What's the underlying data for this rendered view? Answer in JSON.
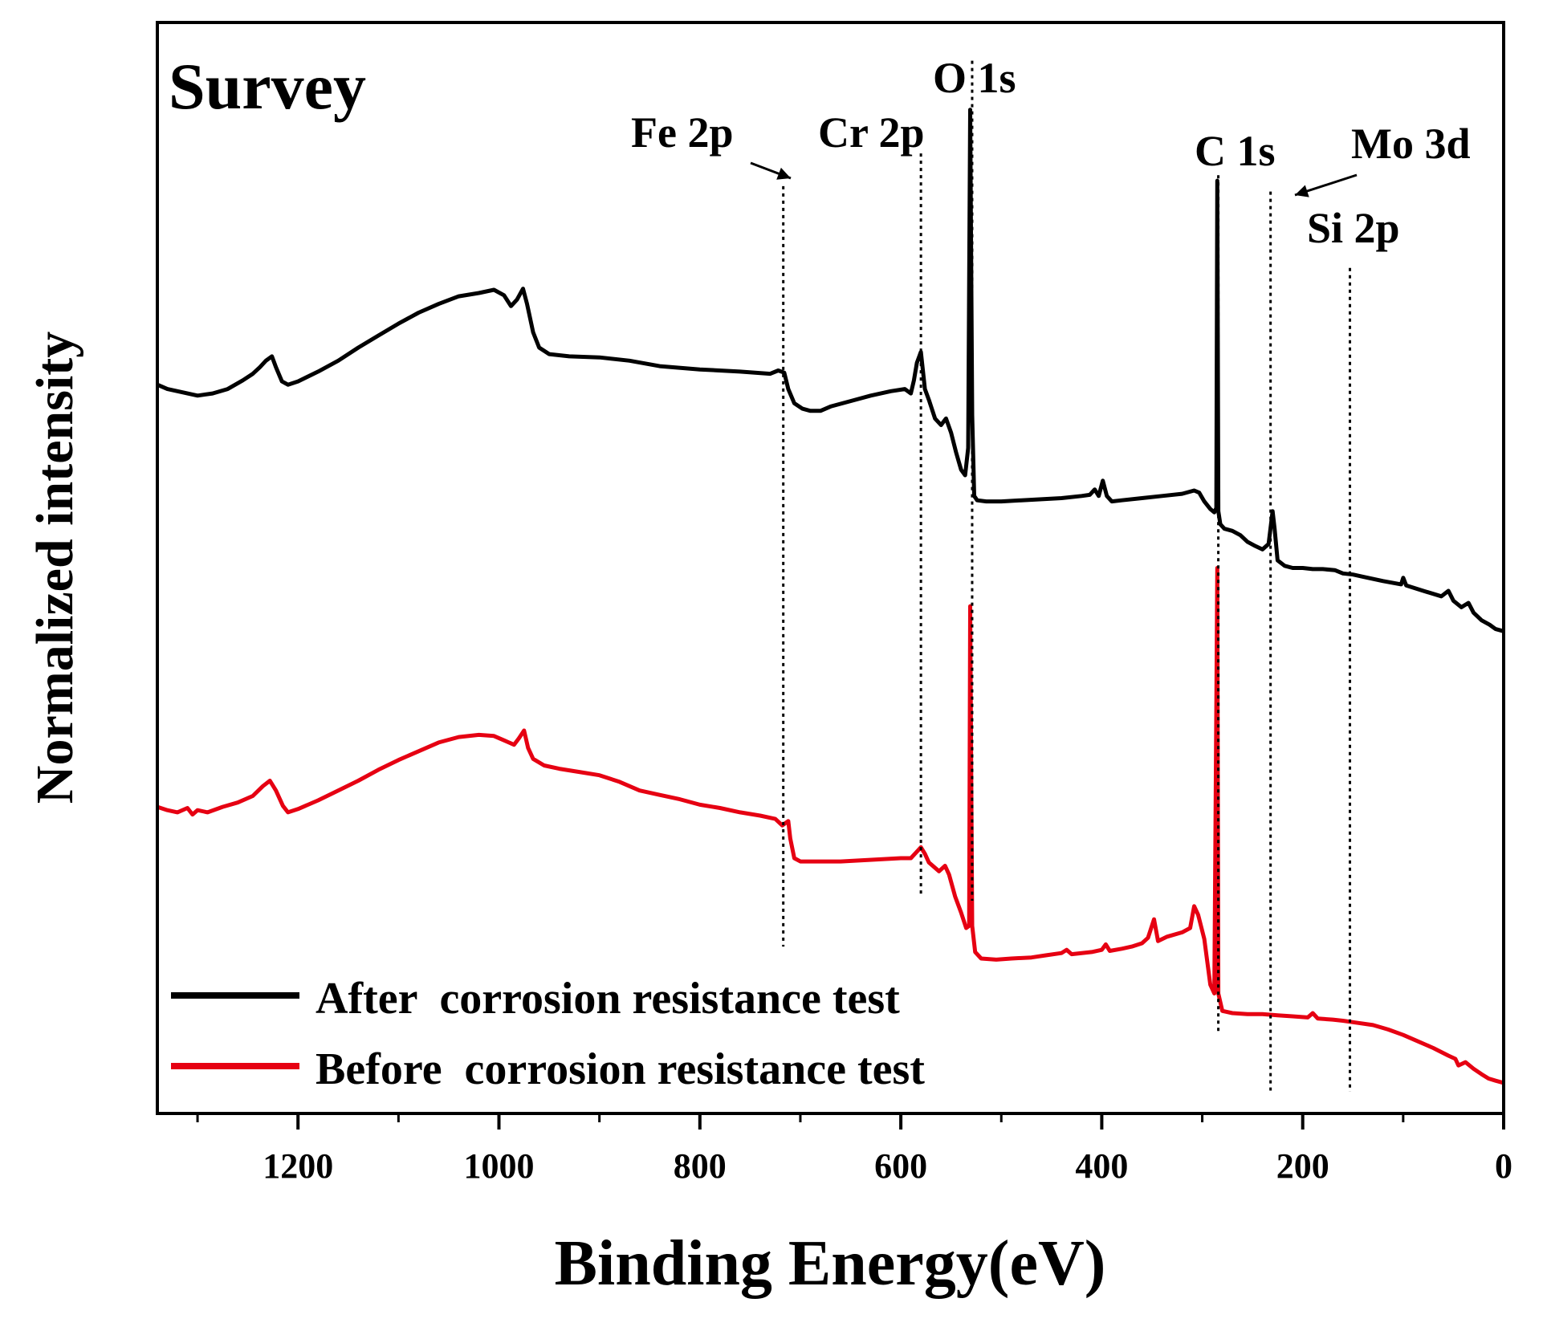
{
  "chart_data": {
    "type": "line",
    "title": "Survey",
    "xlabel": "Binding Energy(eV)",
    "ylabel": "Normalized intensity",
    "xlim": [
      1340,
      0
    ],
    "ylim": [
      0,
      1
    ],
    "x_reversed": true,
    "grid": false,
    "legend_position": "bottom-left",
    "x_ticks": [
      1200,
      1000,
      800,
      600,
      400,
      200,
      0
    ],
    "series": [
      {
        "name": "After  corrosion resistance test",
        "color": "#000000",
        "points": [
          [
            1340,
            0.668
          ],
          [
            1330,
            0.664
          ],
          [
            1315,
            0.661
          ],
          [
            1300,
            0.658
          ],
          [
            1285,
            0.66
          ],
          [
            1270,
            0.664
          ],
          [
            1255,
            0.672
          ],
          [
            1245,
            0.678
          ],
          [
            1238,
            0.684
          ],
          [
            1232,
            0.69
          ],
          [
            1226,
            0.694
          ],
          [
            1222,
            0.684
          ],
          [
            1216,
            0.671
          ],
          [
            1210,
            0.668
          ],
          [
            1200,
            0.671
          ],
          [
            1180,
            0.68
          ],
          [
            1160,
            0.69
          ],
          [
            1140,
            0.702
          ],
          [
            1120,
            0.713
          ],
          [
            1100,
            0.724
          ],
          [
            1080,
            0.734
          ],
          [
            1060,
            0.742
          ],
          [
            1040,
            0.749
          ],
          [
            1020,
            0.752
          ],
          [
            1005,
            0.755
          ],
          [
            995,
            0.75
          ],
          [
            988,
            0.74
          ],
          [
            982,
            0.746
          ],
          [
            976,
            0.756
          ],
          [
            972,
            0.742
          ],
          [
            966,
            0.716
          ],
          [
            960,
            0.702
          ],
          [
            950,
            0.696
          ],
          [
            930,
            0.694
          ],
          [
            900,
            0.693
          ],
          [
            870,
            0.69
          ],
          [
            840,
            0.685
          ],
          [
            800,
            0.682
          ],
          [
            760,
            0.68
          ],
          [
            730,
            0.678
          ],
          [
            722,
            0.681
          ],
          [
            716,
            0.679
          ],
          [
            712,
            0.664
          ],
          [
            706,
            0.651
          ],
          [
            698,
            0.646
          ],
          [
            690,
            0.644
          ],
          [
            680,
            0.644
          ],
          [
            670,
            0.648
          ],
          [
            650,
            0.653
          ],
          [
            630,
            0.658
          ],
          [
            610,
            0.662
          ],
          [
            596,
            0.664
          ],
          [
            590,
            0.66
          ],
          [
            587,
            0.672
          ],
          [
            584,
            0.688
          ],
          [
            580,
            0.698
          ],
          [
            576,
            0.664
          ],
          [
            572,
            0.654
          ],
          [
            566,
            0.637
          ],
          [
            560,
            0.631
          ],
          [
            555,
            0.637
          ],
          [
            550,
            0.624
          ],
          [
            545,
            0.606
          ],
          [
            540,
            0.59
          ],
          [
            536,
            0.585
          ],
          [
            533,
            0.61
          ],
          [
            531,
            0.92
          ],
          [
            529,
            0.64
          ],
          [
            527,
            0.566
          ],
          [
            524,
            0.562
          ],
          [
            515,
            0.561
          ],
          [
            500,
            0.561
          ],
          [
            480,
            0.562
          ],
          [
            460,
            0.563
          ],
          [
            440,
            0.564
          ],
          [
            420,
            0.566
          ],
          [
            412,
            0.567
          ],
          [
            407,
            0.572
          ],
          [
            403,
            0.566
          ],
          [
            399,
            0.58
          ],
          [
            395,
            0.566
          ],
          [
            390,
            0.561
          ],
          [
            380,
            0.562
          ],
          [
            360,
            0.564
          ],
          [
            340,
            0.566
          ],
          [
            320,
            0.568
          ],
          [
            308,
            0.571
          ],
          [
            303,
            0.569
          ],
          [
            298,
            0.561
          ],
          [
            292,
            0.554
          ],
          [
            288,
            0.551
          ],
          [
            286,
            0.555
          ],
          [
            285,
            0.855
          ],
          [
            284,
            0.552
          ],
          [
            282,
            0.54
          ],
          [
            278,
            0.536
          ],
          [
            270,
            0.534
          ],
          [
            262,
            0.53
          ],
          [
            255,
            0.524
          ],
          [
            247,
            0.52
          ],
          [
            240,
            0.517
          ],
          [
            234,
            0.522
          ],
          [
            230,
            0.552
          ],
          [
            228,
            0.536
          ],
          [
            225,
            0.507
          ],
          [
            218,
            0.502
          ],
          [
            210,
            0.5
          ],
          [
            200,
            0.5
          ],
          [
            190,
            0.499
          ],
          [
            180,
            0.499
          ],
          [
            168,
            0.498
          ],
          [
            160,
            0.495
          ],
          [
            150,
            0.494
          ],
          [
            140,
            0.492
          ],
          [
            120,
            0.488
          ],
          [
            102,
            0.485
          ],
          [
            100,
            0.491
          ],
          [
            97,
            0.484
          ],
          [
            80,
            0.479
          ],
          [
            62,
            0.474
          ],
          [
            55,
            0.479
          ],
          [
            50,
            0.47
          ],
          [
            42,
            0.464
          ],
          [
            35,
            0.468
          ],
          [
            30,
            0.459
          ],
          [
            22,
            0.452
          ],
          [
            14,
            0.448
          ],
          [
            8,
            0.444
          ],
          [
            0,
            0.442
          ]
        ]
      },
      {
        "name": "Before  corrosion resistance test",
        "color": "#e60012",
        "points": [
          [
            1340,
            0.281
          ],
          [
            1330,
            0.278
          ],
          [
            1320,
            0.276
          ],
          [
            1310,
            0.28
          ],
          [
            1305,
            0.274
          ],
          [
            1300,
            0.278
          ],
          [
            1290,
            0.276
          ],
          [
            1275,
            0.281
          ],
          [
            1260,
            0.285
          ],
          [
            1245,
            0.291
          ],
          [
            1235,
            0.3
          ],
          [
            1228,
            0.305
          ],
          [
            1222,
            0.296
          ],
          [
            1215,
            0.282
          ],
          [
            1210,
            0.276
          ],
          [
            1200,
            0.279
          ],
          [
            1180,
            0.287
          ],
          [
            1160,
            0.296
          ],
          [
            1140,
            0.305
          ],
          [
            1120,
            0.315
          ],
          [
            1100,
            0.324
          ],
          [
            1080,
            0.332
          ],
          [
            1060,
            0.34
          ],
          [
            1040,
            0.345
          ],
          [
            1020,
            0.347
          ],
          [
            1005,
            0.346
          ],
          [
            995,
            0.342
          ],
          [
            985,
            0.338
          ],
          [
            980,
            0.344
          ],
          [
            975,
            0.351
          ],
          [
            971,
            0.335
          ],
          [
            966,
            0.325
          ],
          [
            955,
            0.319
          ],
          [
            940,
            0.316
          ],
          [
            920,
            0.313
          ],
          [
            900,
            0.31
          ],
          [
            880,
            0.304
          ],
          [
            860,
            0.296
          ],
          [
            840,
            0.292
          ],
          [
            820,
            0.288
          ],
          [
            800,
            0.283
          ],
          [
            780,
            0.28
          ],
          [
            760,
            0.276
          ],
          [
            740,
            0.273
          ],
          [
            725,
            0.27
          ],
          [
            718,
            0.264
          ],
          [
            712,
            0.268
          ],
          [
            710,
            0.252
          ],
          [
            706,
            0.234
          ],
          [
            700,
            0.231
          ],
          [
            680,
            0.231
          ],
          [
            660,
            0.231
          ],
          [
            640,
            0.232
          ],
          [
            620,
            0.233
          ],
          [
            600,
            0.234
          ],
          [
            590,
            0.234
          ],
          [
            585,
            0.239
          ],
          [
            580,
            0.244
          ],
          [
            576,
            0.238
          ],
          [
            572,
            0.23
          ],
          [
            562,
            0.222
          ],
          [
            556,
            0.227
          ],
          [
            552,
            0.219
          ],
          [
            546,
            0.199
          ],
          [
            540,
            0.184
          ],
          [
            535,
            0.17
          ],
          [
            532,
            0.172
          ],
          [
            531,
            0.465
          ],
          [
            529,
            0.172
          ],
          [
            526,
            0.148
          ],
          [
            520,
            0.142
          ],
          [
            505,
            0.141
          ],
          [
            490,
            0.142
          ],
          [
            470,
            0.143
          ],
          [
            455,
            0.145
          ],
          [
            440,
            0.147
          ],
          [
            435,
            0.15
          ],
          [
            430,
            0.146
          ],
          [
            410,
            0.148
          ],
          [
            400,
            0.15
          ],
          [
            396,
            0.155
          ],
          [
            392,
            0.149
          ],
          [
            380,
            0.151
          ],
          [
            370,
            0.153
          ],
          [
            360,
            0.156
          ],
          [
            354,
            0.161
          ],
          [
            348,
            0.178
          ],
          [
            344,
            0.158
          ],
          [
            335,
            0.162
          ],
          [
            320,
            0.166
          ],
          [
            312,
            0.17
          ],
          [
            308,
            0.19
          ],
          [
            304,
            0.182
          ],
          [
            298,
            0.16
          ],
          [
            292,
            0.118
          ],
          [
            288,
            0.11
          ],
          [
            285,
            0.5
          ],
          [
            284,
            0.11
          ],
          [
            280,
            0.094
          ],
          [
            270,
            0.092
          ],
          [
            255,
            0.091
          ],
          [
            240,
            0.091
          ],
          [
            225,
            0.09
          ],
          [
            210,
            0.089
          ],
          [
            195,
            0.088
          ],
          [
            190,
            0.092
          ],
          [
            185,
            0.087
          ],
          [
            170,
            0.086
          ],
          [
            160,
            0.085
          ],
          [
            145,
            0.083
          ],
          [
            130,
            0.081
          ],
          [
            115,
            0.077
          ],
          [
            100,
            0.072
          ],
          [
            85,
            0.066
          ],
          [
            70,
            0.06
          ],
          [
            55,
            0.053
          ],
          [
            48,
            0.05
          ],
          [
            45,
            0.044
          ],
          [
            38,
            0.047
          ],
          [
            30,
            0.041
          ],
          [
            22,
            0.036
          ],
          [
            15,
            0.032
          ],
          [
            8,
            0.03
          ],
          [
            0,
            0.028
          ]
        ]
      }
    ],
    "annotations": [
      {
        "label": "Fe 2p",
        "energy": 717,
        "line_top": 0.85,
        "arrow": true
      },
      {
        "label": "Cr 2p",
        "energy": 580,
        "line_top": 0.88,
        "arrow": false
      },
      {
        "label": "O 1s",
        "energy": 529,
        "line_top": 0.965,
        "arrow": false
      },
      {
        "label": "C 1s",
        "energy": 284,
        "line_top": 0.86,
        "arrow": false
      },
      {
        "label": "Mo 3d",
        "energy": 232,
        "line_top": 0.845,
        "arrow": true
      },
      {
        "label": "Si 2p",
        "energy": 153,
        "line_top": 0.775,
        "arrow": false
      }
    ]
  }
}
